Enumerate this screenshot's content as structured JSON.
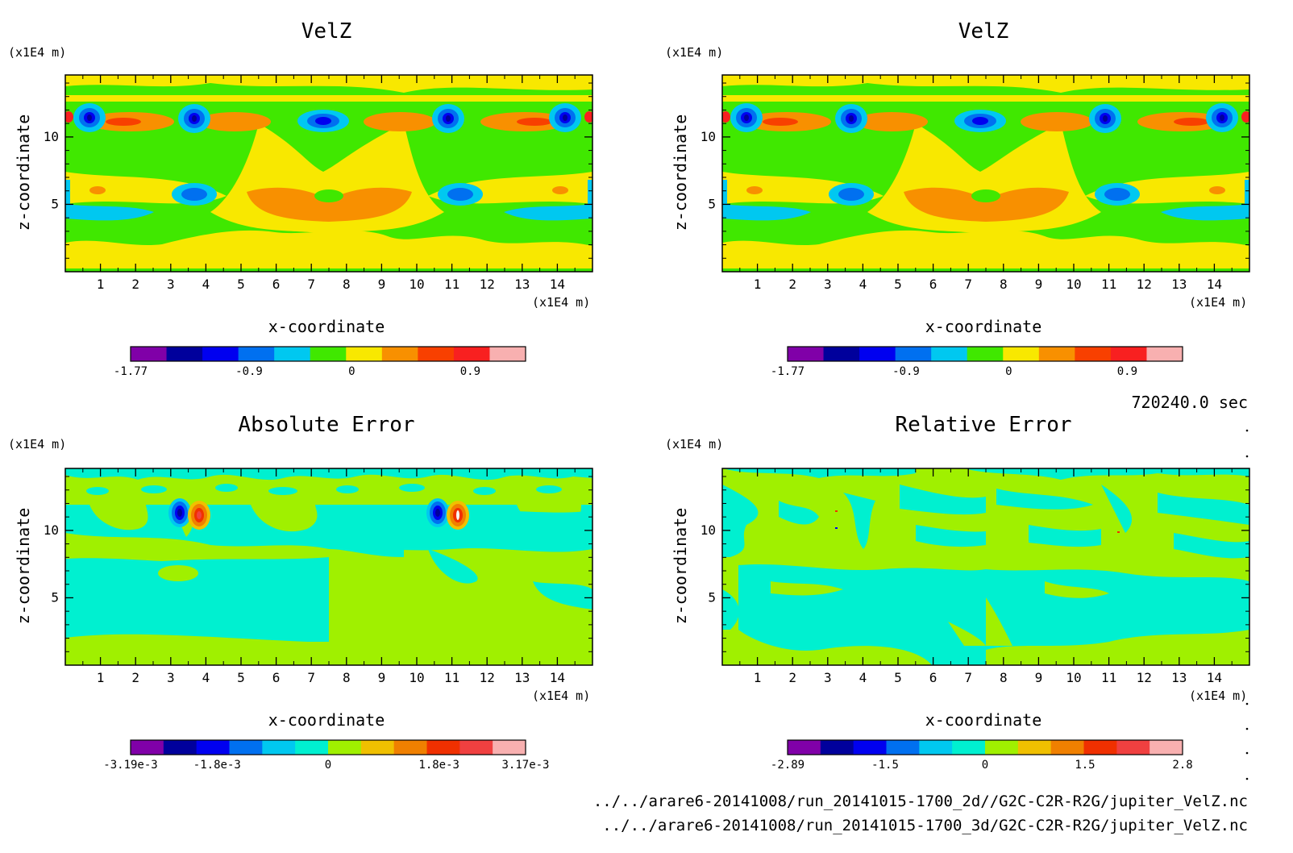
{
  "panels": [
    {
      "id": "velz-2d",
      "title": "VelZ",
      "y_unit": "(x1E4 m)",
      "x_unit": "(x1E4 m)",
      "xlabel": "x-coordinate",
      "ylabel": "z-coordinate",
      "xticks": [
        "1",
        "2",
        "3",
        "4",
        "5",
        "6",
        "7",
        "8",
        "9",
        "10",
        "11",
        "12",
        "13",
        "14"
      ],
      "yticks": [
        "5",
        "10"
      ],
      "colorbar": {
        "colors": [
          "#8000a8",
          "#00009c",
          "#0000f0",
          "#0070f0",
          "#00c8f0",
          "#40e800",
          "#f8e800",
          "#f89000",
          "#f84000",
          "#f82020",
          "#f8b0b0"
        ],
        "labels": [
          "-1.77",
          "-0.9",
          "0",
          "0.9"
        ]
      }
    },
    {
      "id": "velz-3d",
      "title": "VelZ",
      "y_unit": "(x1E4 m)",
      "x_unit": "(x1E4 m)",
      "xlabel": "x-coordinate",
      "ylabel": "z-coordinate",
      "xticks": [
        "1",
        "2",
        "3",
        "4",
        "5",
        "6",
        "7",
        "8",
        "9",
        "10",
        "11",
        "12",
        "13",
        "14"
      ],
      "yticks": [
        "5",
        "10"
      ],
      "colorbar": {
        "colors": [
          "#8000a8",
          "#00009c",
          "#0000f0",
          "#0070f0",
          "#00c8f0",
          "#40e800",
          "#f8e800",
          "#f89000",
          "#f84000",
          "#f82020",
          "#f8b0b0"
        ],
        "labels": [
          "-1.77",
          "-0.9",
          "0",
          "0.9"
        ]
      }
    },
    {
      "id": "absolute-error",
      "title": "Absolute Error",
      "y_unit": "(x1E4 m)",
      "x_unit": "(x1E4 m)",
      "xlabel": "x-coordinate",
      "ylabel": "z-coordinate",
      "xticks": [
        "1",
        "2",
        "3",
        "4",
        "5",
        "6",
        "7",
        "8",
        "9",
        "10",
        "11",
        "12",
        "13",
        "14"
      ],
      "yticks": [
        "5",
        "10"
      ],
      "colorbar": {
        "colors": [
          "#8000a8",
          "#00009c",
          "#0000f0",
          "#0070f0",
          "#00c8f0",
          "#00f0d0",
          "#a0f000",
          "#f0c000",
          "#f08000",
          "#f03000",
          "#f04040",
          "#f8b0b0"
        ],
        "labels": [
          "-3.19e-3",
          "-1.8e-3",
          "0",
          "1.8e-3",
          "3.17e-3"
        ]
      }
    },
    {
      "id": "relative-error",
      "title": "Relative Error",
      "y_unit": "(x1E4 m)",
      "x_unit": "(x1E4 m)",
      "xlabel": "x-coordinate",
      "ylabel": "z-coordinate",
      "xticks": [
        "1",
        "2",
        "3",
        "4",
        "5",
        "6",
        "7",
        "8",
        "9",
        "10",
        "11",
        "12",
        "13",
        "14"
      ],
      "yticks": [
        "5",
        "10"
      ],
      "colorbar": {
        "colors": [
          "#8000a8",
          "#00009c",
          "#0000f0",
          "#0070f0",
          "#00c8f0",
          "#00f0d0",
          "#a0f000",
          "#f0c000",
          "#f08000",
          "#f03000",
          "#f04040",
          "#f8b0b0"
        ],
        "labels": [
          "-2.89",
          "-1.5",
          "0",
          "1.5",
          "2.8"
        ]
      }
    }
  ],
  "time_label": "720240.0 sec",
  "file_paths": [
    "../../arare6-20141008/run_20141015-1700_2d//G2C-C2R-R2G/jupiter_VelZ.nc",
    "../../arare6-20141008/run_20141015-1700_3d/G2C-C2R-R2G/jupiter_VelZ.nc"
  ],
  "chart_data": [
    {
      "type": "heatmap",
      "title": "VelZ",
      "xlabel": "x-coordinate",
      "ylabel": "z-coordinate",
      "x_unit": "(x1E4 m)",
      "y_unit": "(x1E4 m)",
      "xlim": [
        0,
        15
      ],
      "ylim": [
        0,
        14.6
      ],
      "xticks": [
        1,
        2,
        3,
        4,
        5,
        6,
        7,
        8,
        9,
        10,
        11,
        12,
        13,
        14
      ],
      "yticks": [
        5,
        10
      ],
      "colorbar_ticks": [
        "-1.77",
        "-0.9",
        "0",
        "0.9"
      ],
      "features": [
        {
          "x": 0.7,
          "z": 11.3,
          "kind": "min"
        },
        {
          "x": 3.8,
          "z": 11.1,
          "kind": "min"
        },
        {
          "x": 7.6,
          "z": 10.9,
          "kind": "min"
        },
        {
          "x": 11.3,
          "z": 11.1,
          "kind": "min"
        },
        {
          "x": 14.4,
          "z": 11.3,
          "kind": "min"
        },
        {
          "x": 3.8,
          "z": 5.6,
          "kind": "min"
        },
        {
          "x": 11.4,
          "z": 5.6,
          "kind": "min"
        },
        {
          "x": 7.5,
          "z": 4.6,
          "kind": "max"
        },
        {
          "x": 2.0,
          "z": 10.8,
          "kind": "max"
        },
        {
          "x": 13.2,
          "z": 10.8,
          "kind": "max"
        }
      ]
    },
    {
      "type": "heatmap",
      "title": "VelZ",
      "xlabel": "x-coordinate",
      "ylabel": "z-coordinate",
      "x_unit": "(x1E4 m)",
      "y_unit": "(x1E4 m)",
      "xlim": [
        0,
        15
      ],
      "ylim": [
        0,
        14.6
      ],
      "xticks": [
        1,
        2,
        3,
        4,
        5,
        6,
        7,
        8,
        9,
        10,
        11,
        12,
        13,
        14
      ],
      "yticks": [
        5,
        10
      ],
      "colorbar_ticks": [
        "-1.77",
        "-0.9",
        "0",
        "0.9"
      ],
      "features": [
        {
          "x": 0.7,
          "z": 11.3,
          "kind": "min"
        },
        {
          "x": 3.8,
          "z": 11.1,
          "kind": "min"
        },
        {
          "x": 7.6,
          "z": 10.9,
          "kind": "min"
        },
        {
          "x": 11.3,
          "z": 11.1,
          "kind": "min"
        },
        {
          "x": 14.4,
          "z": 11.3,
          "kind": "min"
        },
        {
          "x": 3.8,
          "z": 5.6,
          "kind": "min"
        },
        {
          "x": 11.4,
          "z": 5.6,
          "kind": "min"
        },
        {
          "x": 7.5,
          "z": 4.6,
          "kind": "max"
        },
        {
          "x": 2.0,
          "z": 10.8,
          "kind": "max"
        },
        {
          "x": 13.2,
          "z": 10.8,
          "kind": "max"
        }
      ]
    },
    {
      "type": "heatmap",
      "title": "Absolute Error",
      "xlabel": "x-coordinate",
      "ylabel": "z-coordinate",
      "x_unit": "(x1E4 m)",
      "y_unit": "(x1E4 m)",
      "xlim": [
        0,
        15
      ],
      "ylim": [
        0,
        14.6
      ],
      "xticks": [
        1,
        2,
        3,
        4,
        5,
        6,
        7,
        8,
        9,
        10,
        11,
        12,
        13,
        14
      ],
      "yticks": [
        5,
        10
      ],
      "colorbar_ticks": [
        "-3.19e-3",
        "-1.8e-3",
        "0",
        "1.8e-3",
        "3.17e-3"
      ],
      "features": [
        {
          "x": 3.5,
          "z": 11.2,
          "kind": "min"
        },
        {
          "x": 4.1,
          "z": 11.2,
          "kind": "max"
        },
        {
          "x": 11.0,
          "z": 11.2,
          "kind": "min"
        },
        {
          "x": 11.6,
          "z": 11.2,
          "kind": "max"
        }
      ]
    },
    {
      "type": "heatmap",
      "title": "Relative Error",
      "xlabel": "x-coordinate",
      "ylabel": "z-coordinate",
      "x_unit": "(x1E4 m)",
      "y_unit": "(x1E4 m)",
      "xlim": [
        0,
        15
      ],
      "ylim": [
        0,
        14.6
      ],
      "xticks": [
        1,
        2,
        3,
        4,
        5,
        6,
        7,
        8,
        9,
        10,
        11,
        12,
        13,
        14
      ],
      "yticks": [
        5,
        10
      ],
      "colorbar_ticks": [
        "-2.89",
        "-1.5",
        "0",
        "1.5",
        "2.8"
      ],
      "features": []
    }
  ]
}
